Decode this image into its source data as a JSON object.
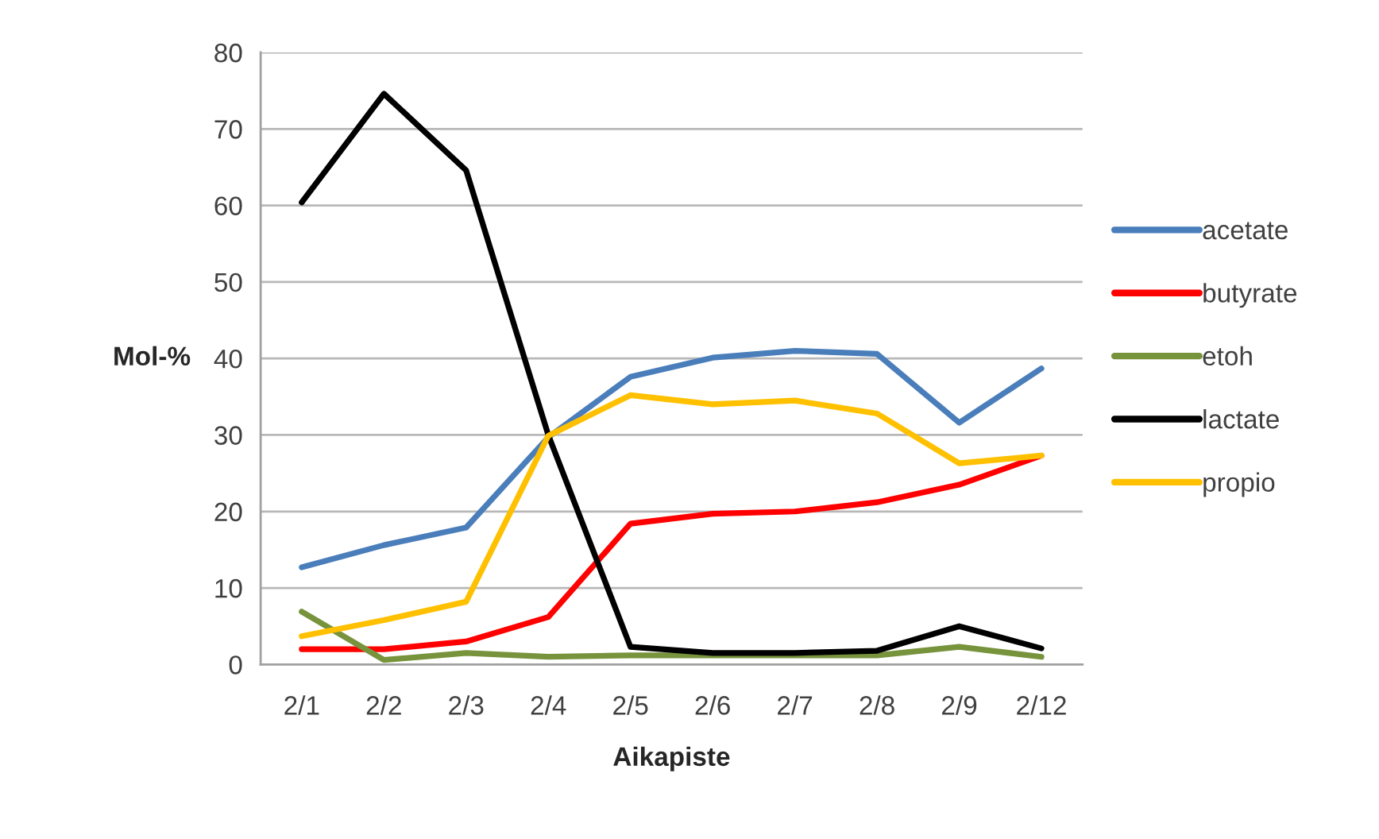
{
  "chart_data": {
    "type": "line",
    "xlabel": "Aikapiste",
    "ylabel": "Mol-%",
    "categories": [
      "2/1",
      "2/2",
      "2/3",
      "2/4",
      "2/5",
      "2/6",
      "2/7",
      "2/8",
      "2/9",
      "2/12"
    ],
    "series": [
      {
        "name": "acetate",
        "color": "#4a7ebb",
        "values": [
          12.7,
          15.6,
          17.9,
          29.7,
          37.6,
          40.1,
          41.0,
          40.6,
          31.6,
          38.7
        ]
      },
      {
        "name": "butyrate",
        "color": "#ff0000",
        "values": [
          2.0,
          2.0,
          3.0,
          6.2,
          18.4,
          19.7,
          20.0,
          21.2,
          23.5,
          27.3
        ]
      },
      {
        "name": "etoh",
        "color": "#77933c",
        "values": [
          6.9,
          0.6,
          1.5,
          1.0,
          1.2,
          1.2,
          1.2,
          1.2,
          2.3,
          1.0
        ]
      },
      {
        "name": "lactate",
        "color": "#000000",
        "values": [
          60.4,
          74.6,
          64.6,
          30.0,
          2.3,
          1.5,
          1.5,
          1.8,
          5.0,
          2.1
        ]
      },
      {
        "name": "propio",
        "color": "#ffc000",
        "values": [
          3.7,
          5.8,
          8.2,
          29.9,
          35.2,
          34.0,
          34.5,
          32.8,
          26.3,
          27.3
        ]
      }
    ],
    "ylim": [
      0,
      80
    ],
    "yticks": [
      0,
      10,
      20,
      30,
      40,
      50,
      60,
      70,
      80
    ],
    "grid": "y",
    "legend": "right",
    "line_style": "solid"
  }
}
